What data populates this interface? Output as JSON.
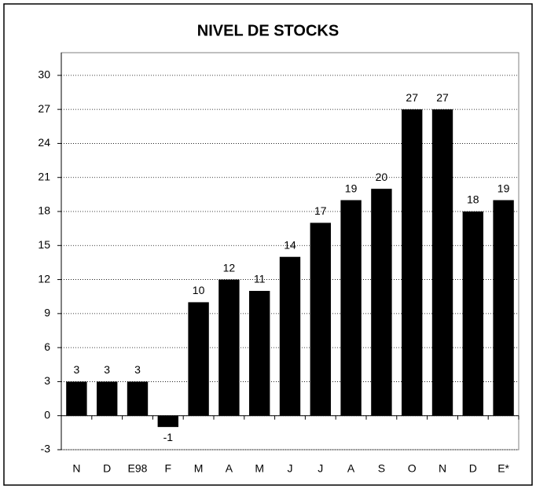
{
  "chart_data": {
    "type": "bar",
    "title": "NIVEL DE STOCKS",
    "categories": [
      "N",
      "D",
      "E98",
      "F",
      "M",
      "A",
      "M",
      "J",
      "J",
      "A",
      "S",
      "O",
      "N",
      "D",
      "E*"
    ],
    "values": [
      3,
      3,
      3,
      -1,
      10,
      12,
      11,
      14,
      17,
      19,
      20,
      27,
      27,
      18,
      19
    ],
    "color": "#000000",
    "ylim": [
      -3,
      32
    ],
    "yticks": [
      -3,
      0,
      3,
      6,
      9,
      12,
      15,
      18,
      21,
      24,
      27,
      30
    ],
    "grid": true
  }
}
